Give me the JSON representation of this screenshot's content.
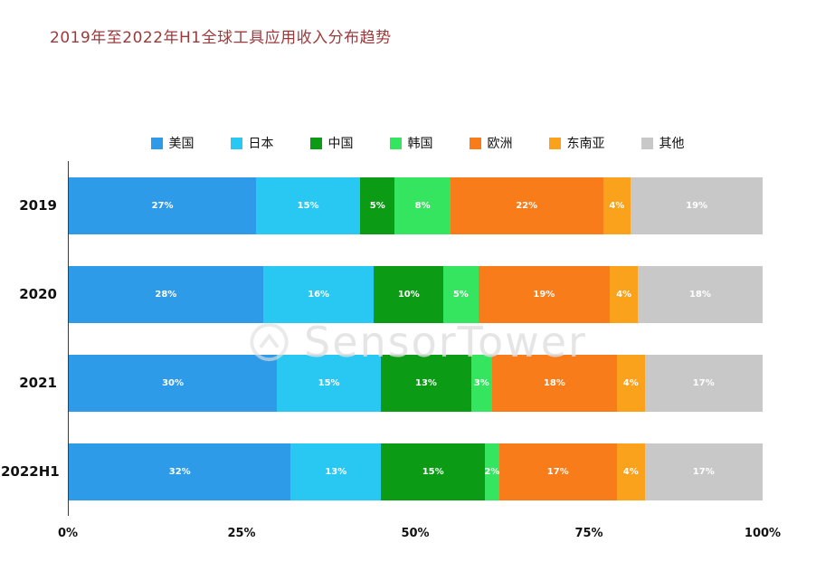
{
  "title": "2019年至2022年H1全球工具应用收入分布趋势",
  "watermark": "SensorTower",
  "chart_data": {
    "type": "bar",
    "orientation": "horizontal",
    "stacked": true,
    "title": "2019年至2022年H1全球工具应用收入分布趋势",
    "categories": [
      "2019",
      "2020",
      "2021",
      "2022H1"
    ],
    "series": [
      {
        "name": "美国",
        "color": "#2E9BE8",
        "values": [
          27,
          28,
          30,
          32
        ]
      },
      {
        "name": "日本",
        "color": "#29C8F2",
        "values": [
          15,
          16,
          15,
          13
        ]
      },
      {
        "name": "中国",
        "color": "#0B9B15",
        "values": [
          5,
          10,
          13,
          15
        ]
      },
      {
        "name": "韩国",
        "color": "#35E55F",
        "values": [
          8,
          5,
          3,
          2
        ]
      },
      {
        "name": "欧洲",
        "color": "#F87D1A",
        "values": [
          22,
          19,
          18,
          17
        ]
      },
      {
        "name": "东南亚",
        "color": "#FAA21C",
        "values": [
          4,
          4,
          4,
          4
        ]
      },
      {
        "name": "其他",
        "color": "#C8C8C8",
        "values": [
          19,
          18,
          17,
          17
        ]
      }
    ],
    "value_label_format": "{v}%",
    "x_ticks": [
      "0%",
      "25%",
      "50%",
      "75%",
      "100%"
    ],
    "x_tick_positions": [
      0,
      25,
      50,
      75,
      100
    ],
    "xlim": [
      0,
      100
    ],
    "legend_position": "top",
    "grid": false
  }
}
